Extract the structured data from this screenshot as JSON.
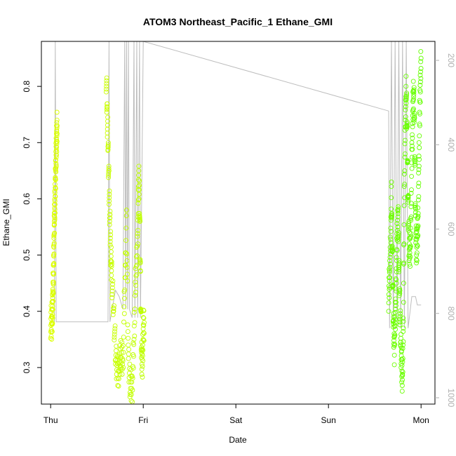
{
  "chart_data": {
    "type": "scatter",
    "title": "ATOM3 Northeast_Pacific_1 Ethane_GMI",
    "xlabel": "Date",
    "ylabel": "Ethane_GMI",
    "x_ticks": [
      "Thu",
      "Fri",
      "Sat",
      "Sun",
      "Mon"
    ],
    "y_ticks": [
      0.3,
      0.4,
      0.5,
      0.6,
      0.7,
      0.8
    ],
    "ylim": [
      0.235,
      0.88
    ],
    "xlim_days": [
      -0.1,
      4.15
    ],
    "right_axis": {
      "ticks": [
        200,
        400,
        600,
        800,
        1000
      ],
      "lim": [
        155,
        1015
      ],
      "reversed": true,
      "color": "#b0b0b0"
    },
    "grid": false,
    "series": [
      {
        "segments": [
          {
            "x0": 0.0,
            "x1": 0.07,
            "points": [
              [
                0.0,
                0.382
              ],
              [
                0.01,
                0.378
              ],
              [
                0.015,
                0.39
              ],
              [
                0.02,
                0.4
              ],
              [
                0.025,
                0.43
              ],
              [
                0.03,
                0.47
              ],
              [
                0.035,
                0.51
              ],
              [
                0.04,
                0.56
              ],
              [
                0.045,
                0.59
              ],
              [
                0.05,
                0.62
              ],
              [
                0.055,
                0.66
              ],
              [
                0.06,
                0.69
              ],
              [
                0.065,
                0.71
              ],
              [
                0.07,
                0.73
              ]
            ]
          },
          {
            "x0": 0.6,
            "x1": 1.0,
            "points": [
              [
                0.6,
                0.82
              ],
              [
                0.61,
                0.75
              ],
              [
                0.62,
                0.7
              ],
              [
                0.63,
                0.62
              ],
              [
                0.64,
                0.56
              ],
              [
                0.65,
                0.5
              ],
              [
                0.66,
                0.46
              ],
              [
                0.68,
                0.4
              ],
              [
                0.7,
                0.33
              ],
              [
                0.72,
                0.29
              ],
              [
                0.74,
                0.3
              ],
              [
                0.76,
                0.33
              ],
              [
                0.78,
                0.3
              ],
              [
                0.8,
                0.45
              ],
              [
                0.82,
                0.55
              ],
              [
                0.84,
                0.31
              ],
              [
                0.86,
                0.27
              ],
              [
                0.88,
                0.26
              ],
              [
                0.9,
                0.35
              ],
              [
                0.92,
                0.47
              ],
              [
                0.94,
                0.52
              ],
              [
                0.95,
                0.64
              ],
              [
                0.96,
                0.6
              ],
              [
                0.97,
                0.46
              ],
              [
                0.98,
                0.33
              ],
              [
                0.99,
                0.3
              ],
              [
                1.0,
                0.37
              ],
              [
                1.01,
                0.38
              ]
            ]
          },
          {
            "x0": 3.65,
            "x1": 4.0,
            "points": [
              [
                3.65,
                0.43
              ],
              [
                3.66,
                0.46
              ],
              [
                3.67,
                0.52
              ],
              [
                3.68,
                0.6
              ],
              [
                3.69,
                0.5
              ],
              [
                3.7,
                0.39
              ],
              [
                3.71,
                0.33
              ],
              [
                3.72,
                0.38
              ],
              [
                3.73,
                0.44
              ],
              [
                3.74,
                0.52
              ],
              [
                3.75,
                0.58
              ],
              [
                3.76,
                0.5
              ],
              [
                3.77,
                0.42
              ],
              [
                3.78,
                0.35
              ],
              [
                3.79,
                0.3
              ],
              [
                3.8,
                0.28
              ],
              [
                3.81,
                0.4
              ],
              [
                3.82,
                0.62
              ],
              [
                3.83,
                0.74
              ],
              [
                3.84,
                0.8
              ],
              [
                3.85,
                0.71
              ],
              [
                3.86,
                0.6
              ],
              [
                3.87,
                0.52
              ],
              [
                3.88,
                0.5
              ],
              [
                3.89,
                0.55
              ],
              [
                3.9,
                0.67
              ],
              [
                3.91,
                0.75
              ],
              [
                3.92,
                0.8
              ],
              [
                3.93,
                0.72
              ],
              [
                3.94,
                0.57
              ],
              [
                3.95,
                0.51
              ],
              [
                3.96,
                0.53
              ],
              [
                3.97,
                0.58
              ],
              [
                3.98,
                0.7
              ],
              [
                3.99,
                0.79
              ],
              [
                4.0,
                0.85
              ]
            ]
          }
        ]
      }
    ],
    "altitude_trace": [
      [
        0.0,
        820
      ],
      [
        0.04,
        820
      ],
      [
        0.05,
        150
      ],
      [
        0.06,
        820
      ],
      [
        0.62,
        820
      ],
      [
        0.63,
        150
      ],
      [
        0.64,
        820
      ],
      [
        0.7,
        745
      ],
      [
        0.74,
        760
      ],
      [
        0.78,
        790
      ],
      [
        0.8,
        150
      ],
      [
        0.81,
        790
      ],
      [
        0.82,
        150
      ],
      [
        0.83,
        790
      ],
      [
        0.84,
        150
      ],
      [
        0.85,
        790
      ],
      [
        0.88,
        810
      ],
      [
        0.9,
        150
      ],
      [
        0.91,
        810
      ],
      [
        0.93,
        150
      ],
      [
        0.94,
        810
      ],
      [
        0.96,
        150
      ],
      [
        0.97,
        810
      ],
      [
        1.0,
        150
      ],
      [
        3.65,
        320
      ],
      [
        3.66,
        835
      ],
      [
        3.68,
        150
      ],
      [
        3.7,
        835
      ],
      [
        3.72,
        150
      ],
      [
        3.74,
        835
      ],
      [
        3.76,
        150
      ],
      [
        3.78,
        835
      ],
      [
        3.8,
        150
      ],
      [
        3.82,
        835
      ],
      [
        3.84,
        150
      ],
      [
        3.86,
        835
      ],
      [
        3.9,
        760
      ],
      [
        3.94,
        760
      ],
      [
        3.96,
        780
      ],
      [
        4.0,
        780
      ]
    ]
  }
}
